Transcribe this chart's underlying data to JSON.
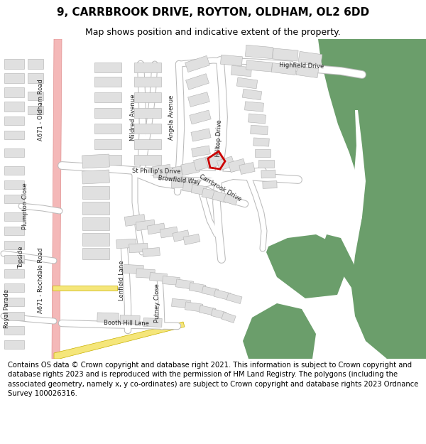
{
  "title": "9, CARRBROOK DRIVE, ROYTON, OLDHAM, OL2 6DD",
  "subtitle": "Map shows position and indicative extent of the property.",
  "footer": "Contains OS data © Crown copyright and database right 2021. This information is subject to Crown copyright and database rights 2023 and is reproduced with the permission of HM Land Registry. The polygons (including the associated geometry, namely x, y co-ordinates) are subject to Crown copyright and database rights 2023 Ordnance Survey 100026316.",
  "map_bg": "#f0eeeb",
  "road_white": "#ffffff",
  "road_outline": "#c8c8c8",
  "building_fill": "#e0e0e0",
  "building_edge": "#b0b0b0",
  "green_fill": "#6b9e6b",
  "pink_road": "#f4b8b8",
  "pink_road_edge": "#e09090",
  "yellow_road": "#f5e67a",
  "yellow_road_edge": "#c8b000",
  "red_plot": "#cc0000",
  "title_fontsize": 11,
  "subtitle_fontsize": 9,
  "footer_fontsize": 7.2,
  "label_fontsize": 6.0
}
